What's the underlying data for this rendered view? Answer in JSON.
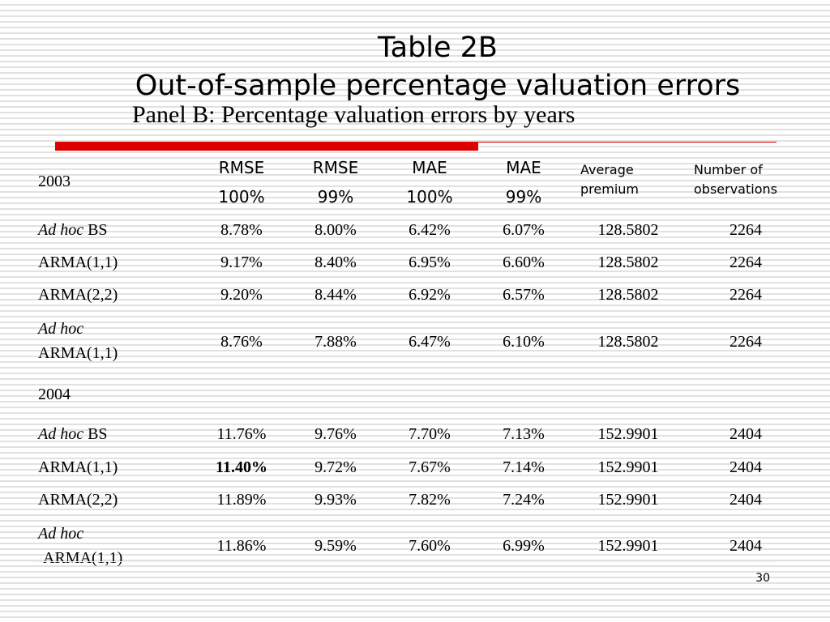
{
  "title_line1": "Table 2B",
  "title_line2": "Out-of-sample percentage valuation errors",
  "panel_title": "Panel B: Percentage valuation errors by years",
  "headers": {
    "year": "2003",
    "rmse100_top": "RMSE",
    "rmse100_bottom": "100%",
    "rmse99_top": "RMSE",
    "rmse99_bottom": "99%",
    "mae100_top": "MAE",
    "mae100_bottom": "100%",
    "mae99_top": "MAE",
    "mae99_bottom": "99%",
    "avg_premium_1": "Average",
    "avg_premium_2": "premium",
    "num_obs_1": "Number of",
    "num_obs_2": "observations"
  },
  "year2": "2004",
  "rows2003": [
    {
      "label_italic": "Ad hoc",
      "label_rest": " BS",
      "vals": [
        "8.78%",
        "8.00%",
        "6.42%",
        "6.07%",
        "128.5802",
        "2264"
      ]
    },
    {
      "label_italic": "",
      "label_rest": "ARMA(1,1)",
      "vals": [
        "9.17%",
        "8.40%",
        "6.95%",
        "6.60%",
        "128.5802",
        "2264"
      ]
    },
    {
      "label_italic": "",
      "label_rest": "ARMA(2,2)",
      "vals": [
        "9.20%",
        "8.44%",
        "6.92%",
        "6.57%",
        "128.5802",
        "2264"
      ]
    },
    {
      "label_italic": "Ad hoc",
      "label_rest": "ARMA(1,1)",
      "vals": [
        "8.76%",
        "7.88%",
        "6.47%",
        "6.10%",
        "128.5802",
        "2264"
      ]
    }
  ],
  "rows2004": [
    {
      "label_italic": "Ad hoc",
      "label_rest": " BS",
      "vals": [
        "11.76%",
        "9.76%",
        "7.70%",
        "7.13%",
        "152.9901",
        "2404"
      ]
    },
    {
      "label_italic": "",
      "label_rest": "ARMA(1,1)",
      "vals": [
        "11.40%",
        "9.72%",
        "7.67%",
        "7.14%",
        "152.9901",
        "2404"
      ]
    },
    {
      "label_italic": "",
      "label_rest": "ARMA(2,2)",
      "vals": [
        "11.89%",
        "9.93%",
        "7.82%",
        "7.24%",
        "152.9901",
        "2404"
      ]
    },
    {
      "label_italic": "Ad hoc",
      "label_rest": "ARMA(1,1)",
      "vals": [
        "11.86%",
        "9.59%",
        "7.60%",
        "6.99%",
        "152.9901",
        "2404"
      ]
    }
  ],
  "page_number": "30",
  "colors": {
    "accent_red": "#dd0000",
    "stripe": "#e1e1e1"
  }
}
